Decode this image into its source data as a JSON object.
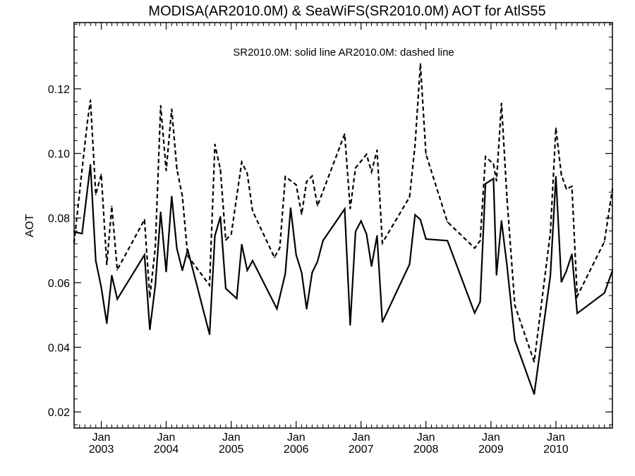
{
  "chart_data": {
    "type": "line",
    "title": "MODISA(AR2010.0M) & SeaWiFS(SR2010.0M)  AOT for AtlS55",
    "legend_note": "SR2010.0M: solid line   AR2010.0M: dashed line",
    "ylabel": "AOT",
    "xlabel": "",
    "xlim": [
      "2002-08-01",
      "2010-11-15"
    ],
    "ylim": [
      0.015,
      0.1405
    ],
    "yticks": [
      0.02,
      0.04,
      0.06,
      0.08,
      0.1,
      0.12
    ],
    "ytick_labels": [
      "0.02",
      "0.04",
      "0.06",
      "0.08",
      "0.10",
      "0.12"
    ],
    "xticks": [
      {
        "date": "2003-01-01",
        "month": "Jan",
        "year": "2003"
      },
      {
        "date": "2004-01-01",
        "month": "Jan",
        "year": "2004"
      },
      {
        "date": "2005-01-01",
        "month": "Jan",
        "year": "2005"
      },
      {
        "date": "2006-01-01",
        "month": "Jan",
        "year": "2006"
      },
      {
        "date": "2007-01-01",
        "month": "Jan",
        "year": "2007"
      },
      {
        "date": "2008-01-01",
        "month": "Jan",
        "year": "2008"
      },
      {
        "date": "2009-01-01",
        "month": "Jan",
        "year": "2009"
      },
      {
        "date": "2010-01-01",
        "month": "Jan",
        "year": "2010"
      }
    ],
    "grid": false,
    "series": [
      {
        "name": "SR2010.0M",
        "style": "solid",
        "color": "#000000",
        "points": [
          [
            "2002-08-01",
            0.0757
          ],
          [
            "2002-09-15",
            0.0752
          ],
          [
            "2002-11-01",
            0.0965
          ],
          [
            "2002-12-01",
            0.0668
          ],
          [
            "2003-01-01",
            0.0585
          ],
          [
            "2003-02-01",
            0.0474
          ],
          [
            "2003-03-01",
            0.0622
          ],
          [
            "2003-04-01",
            0.0549
          ],
          [
            "2003-09-01",
            0.0686
          ],
          [
            "2003-10-01",
            0.0455
          ],
          [
            "2003-11-01",
            0.0592
          ],
          [
            "2003-12-01",
            0.0818
          ],
          [
            "2004-01-01",
            0.0634
          ],
          [
            "2004-02-01",
            0.0867
          ],
          [
            "2004-03-01",
            0.0706
          ],
          [
            "2004-04-01",
            0.0638
          ],
          [
            "2004-05-01",
            0.0702
          ],
          [
            "2004-09-01",
            0.044
          ],
          [
            "2004-10-01",
            0.0745
          ],
          [
            "2004-11-01",
            0.0804
          ],
          [
            "2004-12-01",
            0.0582
          ],
          [
            "2005-02-01",
            0.0551
          ],
          [
            "2005-03-01",
            0.0718
          ],
          [
            "2005-04-01",
            0.0638
          ],
          [
            "2005-05-01",
            0.0668
          ],
          [
            "2005-09-15",
            0.0519
          ],
          [
            "2005-11-01",
            0.0628
          ],
          [
            "2005-12-01",
            0.0831
          ],
          [
            "2006-01-01",
            0.0686
          ],
          [
            "2006-02-01",
            0.0631
          ],
          [
            "2006-03-01",
            0.0519
          ],
          [
            "2006-04-01",
            0.0631
          ],
          [
            "2006-05-01",
            0.0665
          ],
          [
            "2006-06-01",
            0.073
          ],
          [
            "2006-10-01",
            0.0828
          ],
          [
            "2006-11-01",
            0.0469
          ],
          [
            "2006-12-01",
            0.0758
          ],
          [
            "2007-01-01",
            0.0791
          ],
          [
            "2007-02-01",
            0.075
          ],
          [
            "2007-03-01",
            0.0651
          ],
          [
            "2007-04-01",
            0.0745
          ],
          [
            "2007-05-01",
            0.0478
          ],
          [
            "2007-10-01",
            0.0657
          ],
          [
            "2007-11-01",
            0.081
          ],
          [
            "2007-12-01",
            0.0795
          ],
          [
            "2008-01-01",
            0.0735
          ],
          [
            "2008-05-01",
            0.073
          ],
          [
            "2008-10-01",
            0.0506
          ],
          [
            "2008-11-01",
            0.0541
          ],
          [
            "2008-12-01",
            0.0906
          ],
          [
            "2009-01-15",
            0.0922
          ],
          [
            "2009-02-01",
            0.0624
          ],
          [
            "2009-03-01",
            0.0791
          ],
          [
            "2009-04-01",
            0.0653
          ],
          [
            "2009-05-15",
            0.0422
          ],
          [
            "2009-09-01",
            0.0255
          ],
          [
            "2009-12-01",
            0.0622
          ],
          [
            "2010-01-01",
            0.0928
          ],
          [
            "2010-02-01",
            0.0602
          ],
          [
            "2010-03-01",
            0.0636
          ],
          [
            "2010-04-01",
            0.0688
          ],
          [
            "2010-05-01",
            0.0505
          ],
          [
            "2010-10-01",
            0.0568
          ],
          [
            "2010-11-15",
            0.0637
          ]
        ]
      },
      {
        "name": "AR2010.0M",
        "style": "dashed",
        "color": "#000000",
        "points": [
          [
            "2002-08-01",
            0.0723
          ],
          [
            "2002-09-15",
            0.095
          ],
          [
            "2002-10-15",
            0.1098
          ],
          [
            "2002-11-01",
            0.1165
          ],
          [
            "2002-12-01",
            0.0873
          ],
          [
            "2003-01-01",
            0.0935
          ],
          [
            "2003-02-01",
            0.0656
          ],
          [
            "2003-03-01",
            0.0836
          ],
          [
            "2003-04-01",
            0.064
          ],
          [
            "2003-09-01",
            0.0795
          ],
          [
            "2003-10-01",
            0.0555
          ],
          [
            "2003-11-01",
            0.071
          ],
          [
            "2003-12-01",
            0.1148
          ],
          [
            "2004-01-01",
            0.0947
          ],
          [
            "2004-02-01",
            0.1137
          ],
          [
            "2004-03-01",
            0.0952
          ],
          [
            "2004-04-01",
            0.0868
          ],
          [
            "2004-05-01",
            0.0683
          ],
          [
            "2004-09-01",
            0.0592
          ],
          [
            "2004-10-01",
            0.1028
          ],
          [
            "2004-11-01",
            0.095
          ],
          [
            "2004-12-01",
            0.0732
          ],
          [
            "2005-01-01",
            0.075
          ],
          [
            "2005-03-01",
            0.0973
          ],
          [
            "2005-04-01",
            0.0938
          ],
          [
            "2005-05-01",
            0.0822
          ],
          [
            "2005-09-01",
            0.0678
          ],
          [
            "2005-10-01",
            0.0708
          ],
          [
            "2005-11-01",
            0.0928
          ],
          [
            "2006-01-01",
            0.0903
          ],
          [
            "2006-02-01",
            0.0812
          ],
          [
            "2006-03-01",
            0.0913
          ],
          [
            "2006-04-01",
            0.093
          ],
          [
            "2006-05-01",
            0.0838
          ],
          [
            "2006-10-01",
            0.106
          ],
          [
            "2006-11-01",
            0.0829
          ],
          [
            "2006-12-01",
            0.0955
          ],
          [
            "2007-02-01",
            0.0997
          ],
          [
            "2007-03-01",
            0.0943
          ],
          [
            "2007-04-01",
            0.101
          ],
          [
            "2007-05-01",
            0.0723
          ],
          [
            "2007-10-01",
            0.0865
          ],
          [
            "2007-11-01",
            0.1027
          ],
          [
            "2007-12-01",
            0.1277
          ],
          [
            "2008-01-01",
            0.0998
          ],
          [
            "2008-05-01",
            0.0788
          ],
          [
            "2008-10-01",
            0.0707
          ],
          [
            "2008-11-01",
            0.073
          ],
          [
            "2008-12-01",
            0.099
          ],
          [
            "2009-01-15",
            0.0967
          ],
          [
            "2009-02-01",
            0.0915
          ],
          [
            "2009-03-01",
            0.1155
          ],
          [
            "2009-04-01",
            0.086
          ],
          [
            "2009-05-15",
            0.053
          ],
          [
            "2009-09-01",
            0.0355
          ],
          [
            "2009-12-01",
            0.0755
          ],
          [
            "2010-01-01",
            0.1078
          ],
          [
            "2010-02-01",
            0.0933
          ],
          [
            "2010-03-01",
            0.089
          ],
          [
            "2010-04-01",
            0.0898
          ],
          [
            "2010-05-01",
            0.0558
          ],
          [
            "2010-10-01",
            0.0727
          ],
          [
            "2010-11-15",
            0.089
          ]
        ]
      }
    ]
  }
}
